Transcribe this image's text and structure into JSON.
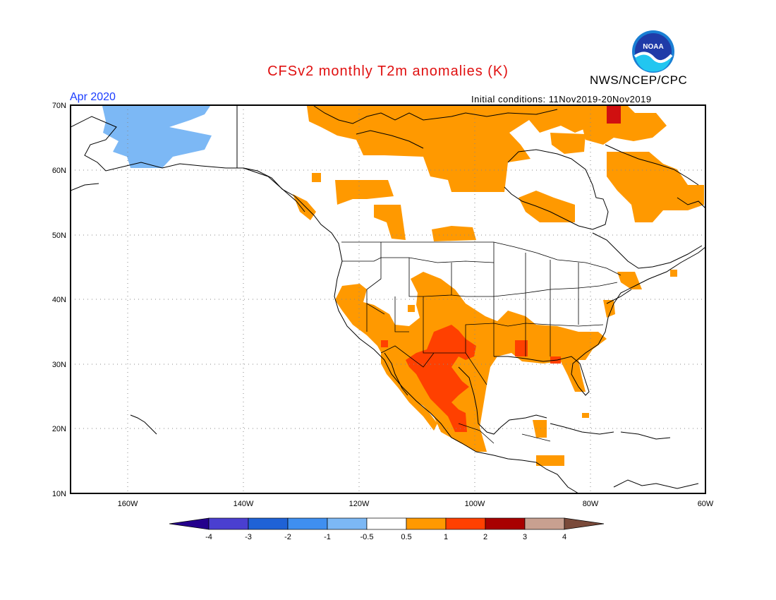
{
  "title": "CFSv2 monthly T2m anomalies (K)",
  "agency": "NWS/NCEP/CPC",
  "logo_text": "NOAA",
  "month_label": "Apr 2020",
  "initial_conditions": "Initial conditions: 11Nov2019-20Nov2019",
  "lat_labels": [
    "70N",
    "60N",
    "50N",
    "40N",
    "30N",
    "20N",
    "10N"
  ],
  "lon_labels": [
    "160W",
    "140W",
    "120W",
    "100W",
    "80W",
    "60W"
  ],
  "colorbar": {
    "colors": [
      "#24008c",
      "#4a3fd0",
      "#1f62d6",
      "#3f8ff0",
      "#7cb8f5",
      "#ffffff",
      "#ff9900",
      "#ff4000",
      "#a80000",
      "#c8a090",
      "#7a4a3a"
    ],
    "labels": [
      "-4",
      "-3",
      "-2",
      "-1",
      "-0.5",
      "0.5",
      "1",
      "2",
      "3",
      "4"
    ]
  },
  "colors": {
    "warm1": "#ff9900",
    "warm2": "#ff4000",
    "warm3": "#d01010",
    "cool1": "#7cb8f5"
  }
}
